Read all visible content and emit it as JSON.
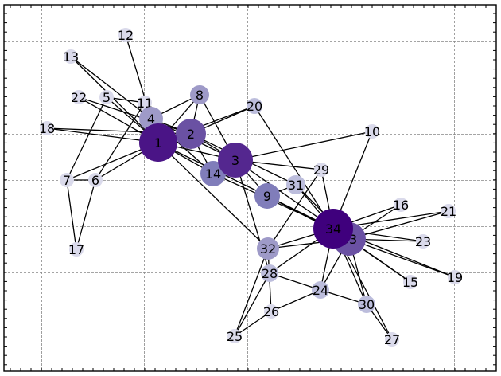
{
  "figure": {
    "type": "network-graph",
    "grid": true,
    "border_color": "#000000",
    "grid_color": "#888888",
    "edge_color": "#000000"
  },
  "colors": {
    "very_dark": "#3f007d",
    "dark": "#4a1486",
    "medium_dark": "#54278f",
    "medium": "#6a51a3",
    "medium_light": "#807dba",
    "light": "#9e9ac8",
    "very_light": "#bcbddc",
    "pale": "#dadaeb"
  },
  "nodes": [
    {
      "id": "1",
      "label": "1",
      "tone": "dark",
      "degree": 16
    },
    {
      "id": "2",
      "label": "2",
      "tone": "medium",
      "degree": 9
    },
    {
      "id": "3",
      "label": "3",
      "tone": "medium_dark",
      "degree": 10
    },
    {
      "id": "4",
      "label": "4",
      "tone": "light",
      "degree": 6
    },
    {
      "id": "5",
      "label": "5",
      "tone": "pale",
      "degree": 3
    },
    {
      "id": "6",
      "label": "6",
      "tone": "pale",
      "degree": 4
    },
    {
      "id": "7",
      "label": "7",
      "tone": "pale",
      "degree": 4
    },
    {
      "id": "8",
      "label": "8",
      "tone": "light",
      "degree": 4
    },
    {
      "id": "9",
      "label": "9",
      "tone": "medium_light",
      "degree": 5
    },
    {
      "id": "10",
      "label": "10",
      "tone": "pale",
      "degree": 2
    },
    {
      "id": "11",
      "label": "11",
      "tone": "pale",
      "degree": 3
    },
    {
      "id": "12",
      "label": "12",
      "tone": "pale",
      "degree": 1
    },
    {
      "id": "13",
      "label": "13",
      "tone": "pale",
      "degree": 2
    },
    {
      "id": "14",
      "label": "14",
      "tone": "medium_light",
      "degree": 5
    },
    {
      "id": "15",
      "label": "15",
      "tone": "pale",
      "degree": 2
    },
    {
      "id": "16",
      "label": "16",
      "tone": "pale",
      "degree": 2
    },
    {
      "id": "17",
      "label": "17",
      "tone": "pale",
      "degree": 2
    },
    {
      "id": "18",
      "label": "18",
      "tone": "pale",
      "degree": 2
    },
    {
      "id": "19",
      "label": "19",
      "tone": "pale",
      "degree": 2
    },
    {
      "id": "20",
      "label": "20",
      "tone": "very_light",
      "degree": 3
    },
    {
      "id": "21",
      "label": "21",
      "tone": "pale",
      "degree": 2
    },
    {
      "id": "22",
      "label": "22",
      "tone": "pale",
      "degree": 2
    },
    {
      "id": "23",
      "label": "23",
      "tone": "pale",
      "degree": 2
    },
    {
      "id": "24",
      "label": "24",
      "tone": "very_light",
      "degree": 5
    },
    {
      "id": "25",
      "label": "25",
      "tone": "pale",
      "degree": 3
    },
    {
      "id": "26",
      "label": "26",
      "tone": "pale",
      "degree": 3
    },
    {
      "id": "27",
      "label": "27",
      "tone": "pale",
      "degree": 2
    },
    {
      "id": "28",
      "label": "28",
      "tone": "very_light",
      "degree": 4
    },
    {
      "id": "29",
      "label": "29",
      "tone": "pale",
      "degree": 3
    },
    {
      "id": "30",
      "label": "30",
      "tone": "very_light",
      "degree": 4
    },
    {
      "id": "31",
      "label": "31",
      "tone": "very_light",
      "degree": 4
    },
    {
      "id": "32",
      "label": "32",
      "tone": "light",
      "degree": 6
    },
    {
      "id": "33",
      "label": "33",
      "tone": "medium",
      "degree": 12
    },
    {
      "id": "34",
      "label": "34",
      "tone": "very_dark",
      "degree": 17
    }
  ],
  "edges": [
    [
      "1",
      "2"
    ],
    [
      "1",
      "3"
    ],
    [
      "1",
      "4"
    ],
    [
      "1",
      "5"
    ],
    [
      "1",
      "6"
    ],
    [
      "1",
      "7"
    ],
    [
      "1",
      "8"
    ],
    [
      "1",
      "9"
    ],
    [
      "1",
      "11"
    ],
    [
      "1",
      "12"
    ],
    [
      "1",
      "13"
    ],
    [
      "1",
      "14"
    ],
    [
      "1",
      "18"
    ],
    [
      "1",
      "20"
    ],
    [
      "1",
      "22"
    ],
    [
      "1",
      "32"
    ],
    [
      "2",
      "3"
    ],
    [
      "2",
      "4"
    ],
    [
      "2",
      "8"
    ],
    [
      "2",
      "14"
    ],
    [
      "2",
      "18"
    ],
    [
      "2",
      "20"
    ],
    [
      "2",
      "22"
    ],
    [
      "2",
      "31"
    ],
    [
      "3",
      "4"
    ],
    [
      "3",
      "8"
    ],
    [
      "3",
      "9"
    ],
    [
      "3",
      "10"
    ],
    [
      "3",
      "14"
    ],
    [
      "3",
      "28"
    ],
    [
      "3",
      "29"
    ],
    [
      "3",
      "33"
    ],
    [
      "4",
      "8"
    ],
    [
      "4",
      "13"
    ],
    [
      "4",
      "14"
    ],
    [
      "5",
      "7"
    ],
    [
      "5",
      "11"
    ],
    [
      "6",
      "7"
    ],
    [
      "6",
      "11"
    ],
    [
      "6",
      "17"
    ],
    [
      "7",
      "17"
    ],
    [
      "9",
      "31"
    ],
    [
      "9",
      "33"
    ],
    [
      "9",
      "34"
    ],
    [
      "10",
      "34"
    ],
    [
      "14",
      "34"
    ],
    [
      "15",
      "33"
    ],
    [
      "15",
      "34"
    ],
    [
      "16",
      "33"
    ],
    [
      "16",
      "34"
    ],
    [
      "19",
      "33"
    ],
    [
      "19",
      "34"
    ],
    [
      "20",
      "34"
    ],
    [
      "21",
      "33"
    ],
    [
      "21",
      "34"
    ],
    [
      "23",
      "33"
    ],
    [
      "23",
      "34"
    ],
    [
      "24",
      "26"
    ],
    [
      "24",
      "28"
    ],
    [
      "24",
      "30"
    ],
    [
      "24",
      "33"
    ],
    [
      "24",
      "34"
    ],
    [
      "25",
      "26"
    ],
    [
      "25",
      "28"
    ],
    [
      "25",
      "32"
    ],
    [
      "26",
      "32"
    ],
    [
      "27",
      "30"
    ],
    [
      "27",
      "34"
    ],
    [
      "28",
      "34"
    ],
    [
      "29",
      "32"
    ],
    [
      "29",
      "34"
    ],
    [
      "30",
      "33"
    ],
    [
      "30",
      "34"
    ],
    [
      "31",
      "33"
    ],
    [
      "31",
      "34"
    ],
    [
      "32",
      "33"
    ],
    [
      "32",
      "34"
    ],
    [
      "33",
      "34"
    ]
  ]
}
